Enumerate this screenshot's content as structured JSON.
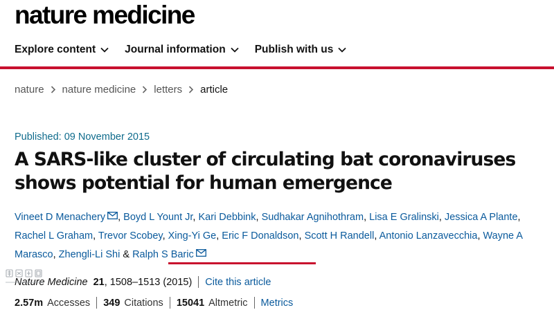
{
  "header": {
    "logo": "nature medicine"
  },
  "nav": [
    {
      "label": "Explore content"
    },
    {
      "label": "Journal information"
    },
    {
      "label": "Publish with us"
    }
  ],
  "breadcrumb": [
    "nature",
    "nature medicine",
    "letters",
    "article"
  ],
  "article": {
    "published": "Published: 09 November 2015",
    "title": "A SARS-like cluster of circulating bat coronaviruses shows potential for human emergence",
    "authors": [
      "Vineet D Menachery",
      "Boyd L Yount Jr",
      "Kari Debbink",
      "Sudhakar Agnihothram",
      "Lisa E Gralinski",
      "Jessica A Plante",
      "Rachel L Graham",
      "Trevor Scobey",
      "Xing-Yi Ge",
      "Eric F Donaldson",
      "Scott H Randell",
      "Antonio Lanzavecchia",
      "Wayne A Marasco",
      "Zhengli-Li Shi",
      "Ralph S Baric"
    ],
    "author_and": "&",
    "citation": {
      "journal": "Nature Medicine",
      "volume": "21",
      "pages": ", 1508–1513 (2015)",
      "cite_link": "Cite this article"
    },
    "metrics": {
      "accesses": "2.57m",
      "accesses_label": "Accesses",
      "citations": "349",
      "citations_label": "Citations",
      "altmetric": "15041",
      "altmetric_label": "Altmetric",
      "metrics_link": "Metrics"
    }
  },
  "colors": {
    "accent": "#c8102e",
    "link": "#0a5a9c",
    "published": "#0f6b8c"
  },
  "icons": [
    "chevron-down-icon",
    "chevron-right-icon",
    "mail-icon",
    "watermark-logo"
  ]
}
